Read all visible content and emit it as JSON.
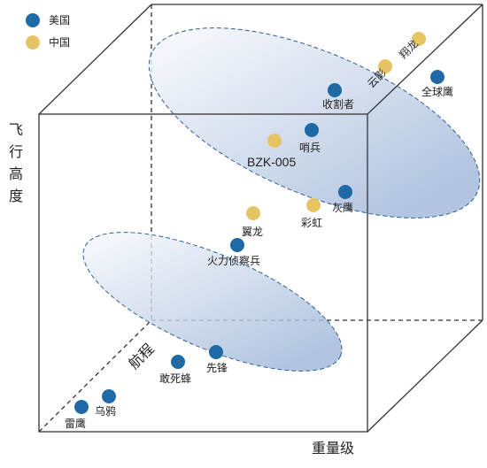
{
  "colors": {
    "usa": "#1f6aa6",
    "china": "#e7c463",
    "ellipse_fill_start": "#ffffff",
    "ellipse_fill_end": "#9fb6d9",
    "ellipse_stroke": "#2e5f99"
  },
  "legend": [
    {
      "label": "美国",
      "country": "usa"
    },
    {
      "label": "中国",
      "country": "china"
    }
  ],
  "axes": {
    "vertical": [
      "飞",
      "行",
      "高",
      "度"
    ],
    "depth": "航程",
    "horizontal": "重量级"
  },
  "aircraft": [
    {
      "label": "翔龙",
      "country": "china"
    },
    {
      "label": "云影",
      "country": "china"
    },
    {
      "label": "全球鹰",
      "country": "usa"
    },
    {
      "label": "收割者",
      "country": "usa"
    },
    {
      "label": "哨兵",
      "country": "usa"
    },
    {
      "label": "BZK-005",
      "country": "china"
    },
    {
      "label": "灰鹰",
      "country": "usa"
    },
    {
      "label": "彩虹",
      "country": "china"
    },
    {
      "label": "翼龙",
      "country": "china"
    },
    {
      "label": "火力侦察兵",
      "country": "usa"
    },
    {
      "label": "先锋",
      "country": "usa"
    },
    {
      "label": "敢死蜂",
      "country": "usa"
    },
    {
      "label": "乌鸦",
      "country": "usa"
    },
    {
      "label": "雷鹰",
      "country": "usa"
    }
  ]
}
